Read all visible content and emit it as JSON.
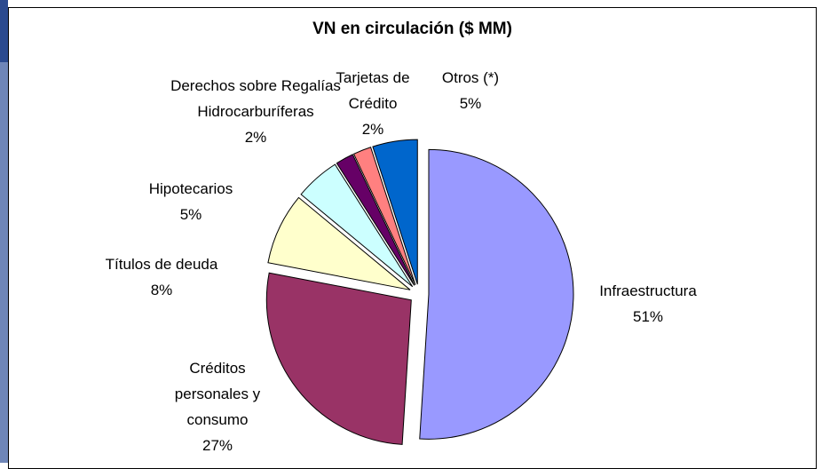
{
  "chart_data": {
    "type": "pie",
    "title": "VN en circulación ($ MM)",
    "categories": [
      "Infraestructura",
      "Créditos personales y consumo",
      "Títulos de deuda",
      "Hipotecarios",
      "Derechos sobre Regalías Hidrocarburíferas",
      "Tarjetas de Crédito",
      "Otros (*)"
    ],
    "values": [
      51,
      27,
      8,
      5,
      2,
      2,
      5
    ],
    "value_labels": [
      "51%",
      "27%",
      "8%",
      "5%",
      "2%",
      "2%",
      "5%"
    ],
    "colors": [
      "#9999ff",
      "#993366",
      "#ffffcc",
      "#ccffff",
      "#660066",
      "#ff8080",
      "#0066cc"
    ]
  }
}
